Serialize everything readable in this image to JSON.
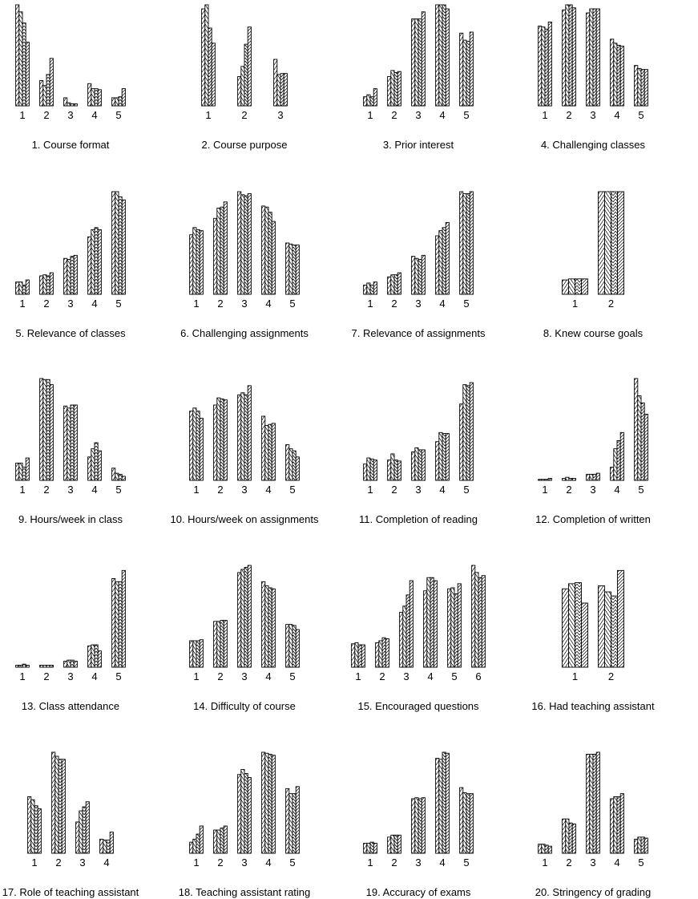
{
  "chart_data": [
    {
      "type": "bar",
      "title": "1. Course format",
      "categories": [
        "1",
        "2",
        "3",
        "4",
        "5"
      ],
      "series": [
        {
          "values": [
            100,
            25,
            8,
            22,
            8
          ]
        },
        {
          "values": [
            93,
            20,
            3,
            17,
            8
          ]
        },
        {
          "values": [
            82,
            31,
            2,
            17,
            9
          ]
        },
        {
          "values": [
            63,
            47,
            2,
            16,
            17
          ]
        }
      ]
    },
    {
      "type": "bar",
      "title": "2. Course purpose",
      "categories": [
        "1",
        "2",
        "3"
      ],
      "series": [
        {
          "values": [
            96,
            29,
            46
          ]
        },
        {
          "values": [
            100,
            39,
            31
          ]
        },
        {
          "values": [
            77,
            61,
            32
          ]
        },
        {
          "values": [
            62,
            78,
            32
          ]
        }
      ]
    },
    {
      "type": "bar",
      "title": "3. Prior interest",
      "categories": [
        "1",
        "2",
        "3",
        "4",
        "5"
      ],
      "series": [
        {
          "values": [
            9,
            29,
            86,
            100,
            72
          ]
        },
        {
          "values": [
            11,
            35,
            86,
            100,
            65
          ]
        },
        {
          "values": [
            9,
            33,
            86,
            100,
            64
          ]
        },
        {
          "values": [
            17,
            34,
            93,
            96,
            73
          ]
        }
      ]
    },
    {
      "type": "bar",
      "title": "4. Challenging classes",
      "categories": [
        "1",
        "2",
        "3",
        "4",
        "5"
      ],
      "series": [
        {
          "values": [
            79,
            95,
            92,
            66,
            40
          ]
        },
        {
          "values": [
            78,
            100,
            96,
            62,
            37
          ]
        },
        {
          "values": [
            76,
            100,
            96,
            60,
            36
          ]
        },
        {
          "values": [
            83,
            97,
            96,
            59,
            36
          ]
        }
      ]
    },
    {
      "type": "bar",
      "title": "5. Relevance of classes",
      "categories": [
        "1",
        "2",
        "3",
        "4",
        "5"
      ],
      "series": [
        {
          "values": [
            12,
            18,
            35,
            56,
            100
          ]
        },
        {
          "values": [
            12,
            19,
            34,
            63,
            100
          ]
        },
        {
          "values": [
            9,
            18,
            37,
            65,
            95
          ]
        },
        {
          "values": [
            14,
            21,
            38,
            63,
            92
          ]
        }
      ]
    },
    {
      "type": "bar",
      "title": "6. Challenging assignments",
      "categories": [
        "1",
        "2",
        "3",
        "4",
        "5"
      ],
      "series": [
        {
          "values": [
            58,
            74,
            100,
            86,
            50
          ]
        },
        {
          "values": [
            65,
            84,
            97,
            85,
            49
          ]
        },
        {
          "values": [
            63,
            85,
            96,
            80,
            48
          ]
        },
        {
          "values": [
            62,
            90,
            98,
            71,
            48
          ]
        }
      ]
    },
    {
      "type": "bar",
      "title": "7. Relevance of assignments",
      "categories": [
        "1",
        "2",
        "3",
        "4",
        "5"
      ],
      "series": [
        {
          "values": [
            9,
            17,
            37,
            57,
            100
          ]
        },
        {
          "values": [
            11,
            19,
            35,
            62,
            98
          ]
        },
        {
          "values": [
            9,
            19,
            34,
            65,
            98
          ]
        },
        {
          "values": [
            12,
            21,
            38,
            70,
            100
          ]
        }
      ]
    },
    {
      "type": "bar",
      "title": "8. Knew course goals",
      "categories": [
        "1",
        "2"
      ],
      "series": [
        {
          "values": [
            14,
            100
          ]
        },
        {
          "values": [
            15,
            100
          ]
        },
        {
          "values": [
            15,
            100
          ]
        },
        {
          "values": [
            15,
            100
          ]
        }
      ]
    },
    {
      "type": "bar",
      "title": "9. Hours/week in class",
      "categories": [
        "1",
        "2",
        "3",
        "4",
        "5"
      ],
      "series": [
        {
          "values": [
            17,
            100,
            73,
            23,
            12
          ]
        },
        {
          "values": [
            17,
            99,
            71,
            31,
            7
          ]
        },
        {
          "values": [
            13,
            99,
            74,
            37,
            6
          ]
        },
        {
          "values": [
            22,
            94,
            74,
            29,
            4
          ]
        }
      ]
    },
    {
      "type": "bar",
      "title": "10. Hours/week on assignments",
      "categories": [
        "1",
        "2",
        "3",
        "4",
        "5"
      ],
      "series": [
        {
          "values": [
            68,
            74,
            84,
            63,
            35
          ]
        },
        {
          "values": [
            71,
            81,
            86,
            54,
            31
          ]
        },
        {
          "values": [
            68,
            80,
            84,
            55,
            29
          ]
        },
        {
          "values": [
            61,
            79,
            93,
            56,
            23
          ]
        }
      ]
    },
    {
      "type": "bar",
      "title": "11. Completion of reading",
      "categories": [
        "1",
        "2",
        "3",
        "4",
        "5"
      ],
      "series": [
        {
          "values": [
            16,
            20,
            28,
            38,
            75
          ]
        },
        {
          "values": [
            22,
            26,
            32,
            47,
            94
          ]
        },
        {
          "values": [
            21,
            20,
            30,
            46,
            93
          ]
        },
        {
          "values": [
            20,
            19,
            30,
            46,
            96
          ]
        }
      ]
    },
    {
      "type": "bar",
      "title": "12. Completion of written",
      "categories": [
        "1",
        "2",
        "3",
        "4",
        "5"
      ],
      "series": [
        {
          "values": [
            1,
            2,
            6,
            13,
            100
          ]
        },
        {
          "values": [
            1,
            3,
            6,
            31,
            83
          ]
        },
        {
          "values": [
            1,
            2,
            6,
            39,
            76
          ]
        },
        {
          "values": [
            2,
            2,
            7,
            47,
            65
          ]
        }
      ]
    },
    {
      "type": "bar",
      "title": "13. Class attendance",
      "categories": [
        "1",
        "2",
        "3",
        "4",
        "5"
      ],
      "series": [
        {
          "values": [
            2,
            2,
            6,
            21,
            87
          ]
        },
        {
          "values": [
            2,
            2,
            7,
            22,
            84
          ]
        },
        {
          "values": [
            3,
            2,
            7,
            22,
            84
          ]
        },
        {
          "values": [
            2,
            2,
            6,
            16,
            95
          ]
        }
      ]
    },
    {
      "type": "bar",
      "title": "14. Difficulty of course",
      "categories": [
        "1",
        "2",
        "3",
        "4",
        "5"
      ],
      "series": [
        {
          "values": [
            26,
            45,
            93,
            84,
            42
          ]
        },
        {
          "values": [
            26,
            45,
            96,
            80,
            42
          ]
        },
        {
          "values": [
            26,
            46,
            98,
            78,
            41
          ]
        },
        {
          "values": [
            27,
            46,
            100,
            77,
            37
          ]
        }
      ]
    },
    {
      "type": "bar",
      "title": "15. Encouraged questions",
      "categories": [
        "1",
        "2",
        "3",
        "4",
        "5",
        "6"
      ],
      "series": [
        {
          "values": [
            23,
            24,
            54,
            75,
            77,
            100
          ]
        },
        {
          "values": [
            24,
            26,
            60,
            88,
            78,
            93
          ]
        },
        {
          "values": [
            22,
            29,
            71,
            88,
            72,
            88
          ]
        },
        {
          "values": [
            22,
            28,
            85,
            85,
            82,
            90
          ]
        }
      ]
    },
    {
      "type": "bar",
      "title": "16. Had teaching assistant",
      "categories": [
        "1",
        "2"
      ],
      "series": [
        {
          "values": [
            77,
            80
          ]
        },
        {
          "values": [
            82,
            74
          ]
        },
        {
          "values": [
            83,
            70
          ]
        },
        {
          "values": [
            63,
            95
          ]
        }
      ]
    },
    {
      "type": "bar",
      "title": "17. Role of teaching assistant",
      "categories": [
        "1",
        "2",
        "3",
        "4"
      ],
      "series": [
        {
          "values": [
            56,
            100,
            31,
            14
          ]
        },
        {
          "values": [
            53,
            96,
            42,
            13
          ]
        },
        {
          "values": [
            47,
            93,
            46,
            13
          ]
        },
        {
          "values": [
            44,
            93,
            51,
            21
          ]
        }
      ]
    },
    {
      "type": "bar",
      "title": "18. Teaching assistant rating",
      "categories": [
        "1",
        "2",
        "3",
        "4",
        "5"
      ],
      "series": [
        {
          "values": [
            11,
            23,
            78,
            100,
            64
          ]
        },
        {
          "values": [
            14,
            23,
            83,
            99,
            59
          ]
        },
        {
          "values": [
            19,
            25,
            79,
            98,
            59
          ]
        },
        {
          "values": [
            27,
            27,
            75,
            97,
            66
          ]
        }
      ]
    },
    {
      "type": "bar",
      "title": "19. Accuracy of exams",
      "categories": [
        "1",
        "2",
        "3",
        "4",
        "5"
      ],
      "series": [
        {
          "values": [
            10,
            16,
            54,
            94,
            65
          ]
        },
        {
          "values": [
            10,
            18,
            55,
            93,
            60
          ]
        },
        {
          "values": [
            11,
            18,
            54,
            100,
            59
          ]
        },
        {
          "values": [
            10,
            18,
            55,
            99,
            59
          ]
        }
      ]
    },
    {
      "type": "bar",
      "title": "20. Stringency of grading",
      "categories": [
        "1",
        "2",
        "3",
        "4",
        "5"
      ],
      "series": [
        {
          "values": [
            9,
            34,
            98,
            54,
            14
          ]
        },
        {
          "values": [
            9,
            34,
            98,
            56,
            16
          ]
        },
        {
          "values": [
            8,
            30,
            98,
            56,
            16
          ]
        },
        {
          "values": [
            7,
            29,
            100,
            59,
            15
          ]
        }
      ]
    }
  ]
}
